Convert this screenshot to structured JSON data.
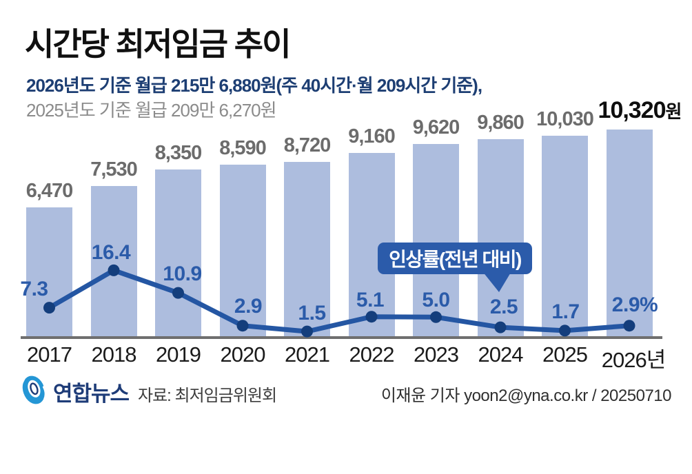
{
  "title": "시간당 최저임금 추이",
  "subtitle_primary": "2026년도 기준 월급 215만 6,880원(주 40시간·월 209시간 기준),",
  "subtitle_secondary": "2025년도 기준 월급 209만 6,270원",
  "callout_label": "인상률(전년 대비)",
  "chart_data": {
    "type": "bar",
    "combo": "bar+line",
    "title": "시간당 최저임금 추이",
    "categories": [
      "2017",
      "2018",
      "2019",
      "2020",
      "2021",
      "2022",
      "2023",
      "2024",
      "2025",
      "2026"
    ],
    "x_tick_labels": [
      "2017",
      "2018",
      "2019",
      "2020",
      "2021",
      "2022",
      "2023",
      "2024",
      "2025",
      "2026년"
    ],
    "series": [
      {
        "name": "시간당 최저임금(원)",
        "type": "bar",
        "values": [
          6470,
          7530,
          8350,
          8590,
          8720,
          9160,
          9620,
          9860,
          10030,
          10320
        ],
        "labels": [
          "6,470",
          "7,530",
          "8,350",
          "8,590",
          "8,720",
          "9,160",
          "9,620",
          "9,860",
          "10,030",
          "10,320"
        ]
      },
      {
        "name": "인상률(전년 대비)",
        "type": "line",
        "values": [
          7.3,
          16.4,
          10.9,
          2.9,
          1.5,
          5.1,
          5.0,
          2.5,
          1.7,
          2.9
        ],
        "labels": [
          "7.3",
          "16.4",
          "10.9",
          "2.9",
          "1.5",
          "5.1",
          "5.0",
          "2.5",
          "1.7",
          "2.9%"
        ]
      }
    ],
    "final_bar_suffix": "원",
    "ylim_bar": [
      0,
      10320
    ],
    "grid": false,
    "legend_position": "callout-above-2024-point",
    "colors": {
      "bar": "#adbdde",
      "line": "#2456a3",
      "dot": "#143e7c",
      "rate_label": "#2b5ba9",
      "callout_bg": "#2b5baa",
      "title": "#101010",
      "subtitle_primary": "#1d3e73",
      "subtitle_secondary": "#8b8b8b",
      "bar_label": "#6c6c6c",
      "final_bar_label": "#0e0e0e",
      "axis": "#6f6f6f",
      "year_label": "#1b1b1b",
      "logo_blue": "#2496d5",
      "logo_navy": "#1e3c78"
    }
  },
  "footer": {
    "logo_text": "연합뉴스",
    "source": "자료: 최저임금위원회",
    "credit": "이재윤 기자 yoon2@yna.co.kr / 20250710"
  }
}
